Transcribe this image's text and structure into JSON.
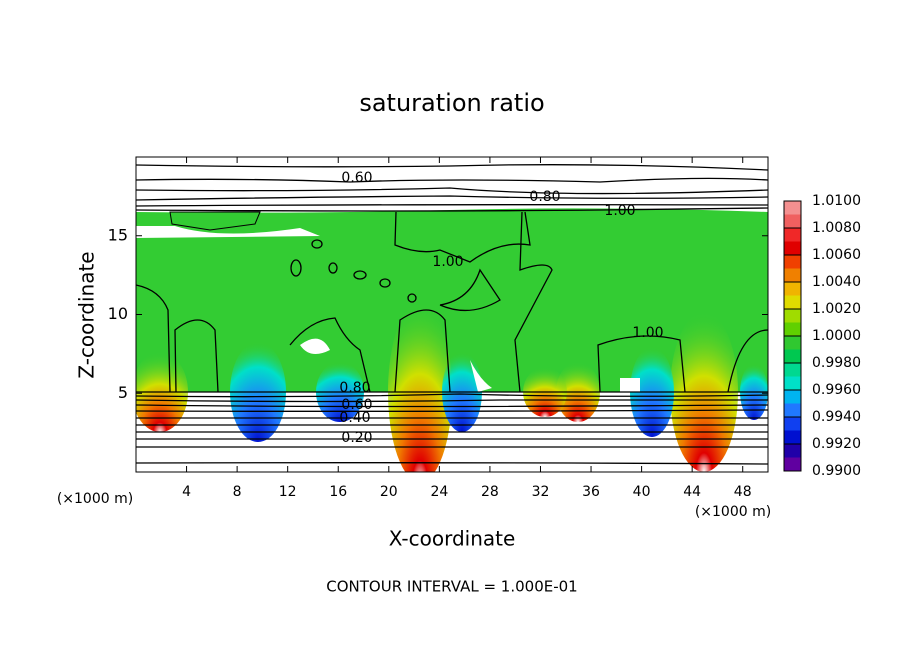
{
  "chart_data": {
    "type": "contour",
    "title": "saturation ratio",
    "x_label": "X-coordinate",
    "y_label": "Z-coordinate",
    "x_unit": "(×1000 m)",
    "x_unit_right": "(×1000 m)",
    "footnote": "CONTOUR INTERVAL = 1.000E-01",
    "xlim": [
      0,
      50
    ],
    "ylim": [
      0,
      20
    ],
    "xticks": [
      4,
      8,
      12,
      16,
      20,
      24,
      28,
      32,
      36,
      40,
      44,
      48
    ],
    "yticks": [
      5,
      10,
      15
    ],
    "contour_labels": [
      {
        "value": 0.6,
        "label": "0.60"
      },
      {
        "value": 0.8,
        "label": "0.80"
      },
      {
        "value": 1.0,
        "label": "1.00"
      },
      {
        "value": 1.0,
        "label": "1.00"
      },
      {
        "value": 1.0,
        "label": "1.00"
      },
      {
        "value": 0.8,
        "label": "0.80"
      },
      {
        "value": 0.6,
        "label": "0.60"
      },
      {
        "value": 0.4,
        "label": "0.40"
      },
      {
        "value": 0.2,
        "label": "0.20"
      }
    ],
    "colorbar": {
      "ticks": [
        {
          "value": 1.01,
          "label": "1.0100"
        },
        {
          "value": 1.008,
          "label": "1.0080"
        },
        {
          "value": 1.006,
          "label": "1.0060"
        },
        {
          "value": 1.004,
          "label": "1.0040"
        },
        {
          "value": 1.002,
          "label": "1.0020"
        },
        {
          "value": 1.0,
          "label": "1.0000"
        },
        {
          "value": 0.998,
          "label": "0.9980"
        },
        {
          "value": 0.996,
          "label": "0.9960"
        },
        {
          "value": 0.994,
          "label": "0.9940"
        },
        {
          "value": 0.992,
          "label": "0.9920"
        },
        {
          "value": 0.99,
          "label": "0.9900"
        }
      ],
      "colors": [
        "#f49090",
        "#f06060",
        "#f02828",
        "#e00000",
        "#f04000",
        "#f08000",
        "#f0b400",
        "#e0dc00",
        "#a0dc00",
        "#60d000",
        "#30c830",
        "#00c850",
        "#00d890",
        "#00e0c8",
        "#00b4f0",
        "#2078ff",
        "#1040f0",
        "#0010d0",
        "#2000a8",
        "#6000a0"
      ]
    }
  }
}
